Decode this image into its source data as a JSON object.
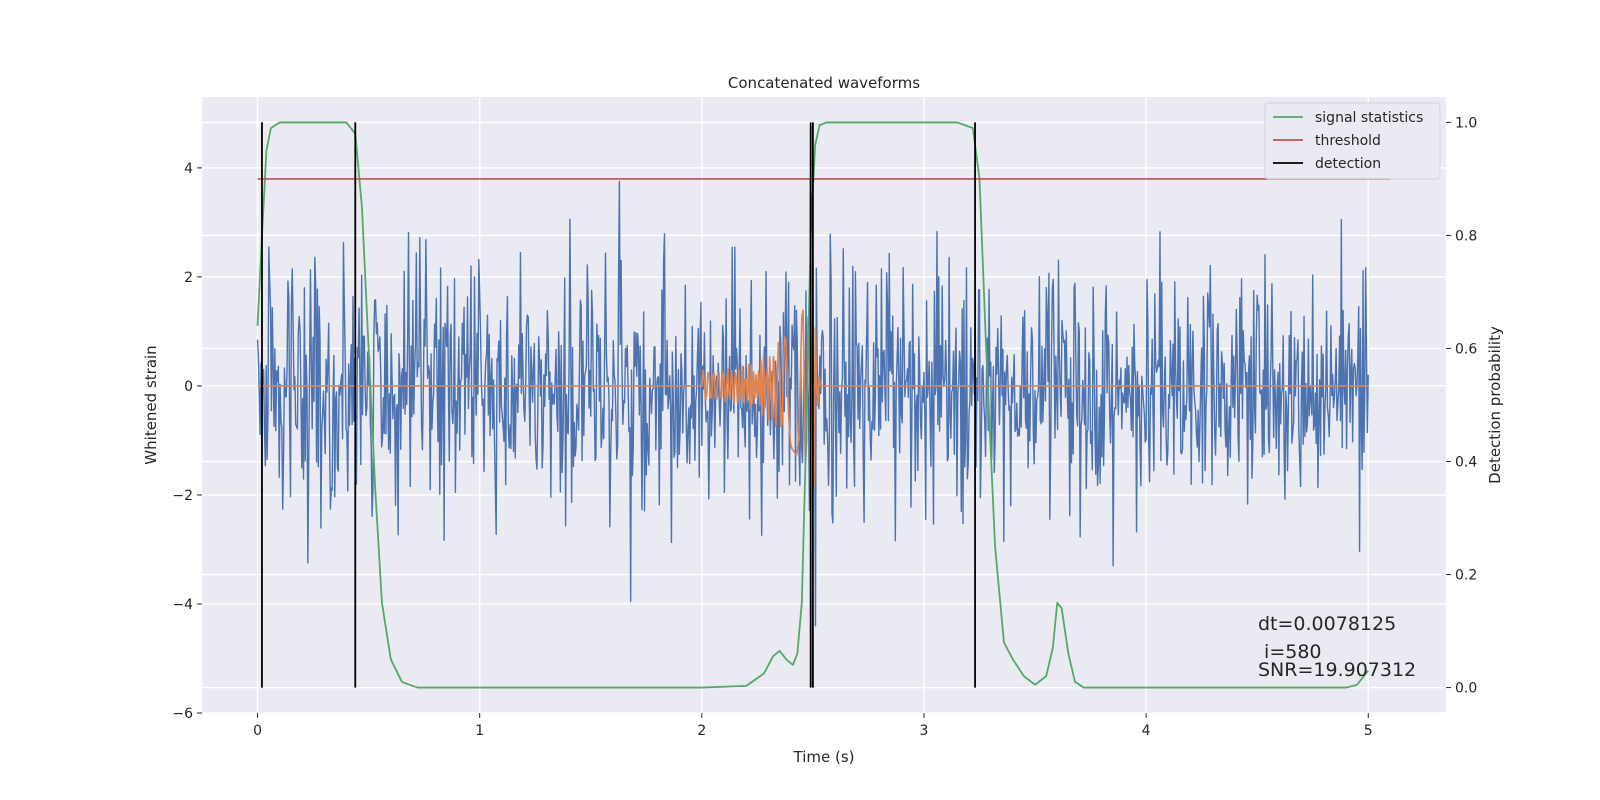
{
  "chart_data": {
    "type": "line",
    "title": "Concatenated waveforms",
    "xlabel": "Time (s)",
    "ylabel": "Whitened strain",
    "ylabel_right": "Detection probability",
    "xlim": [
      -0.25,
      5.35
    ],
    "ylim": [
      -6.0,
      5.3
    ],
    "ylim_right": [
      -0.045,
      1.045
    ],
    "x_ticks": [
      0,
      1,
      2,
      3,
      4,
      5
    ],
    "x_tick_labels": [
      "0",
      "1",
      "2",
      "3",
      "4",
      "5"
    ],
    "y_ticks": [
      -6,
      -4,
      -2,
      0,
      2,
      4
    ],
    "y_tick_labels": [
      "−6",
      "−4",
      "−2",
      "0",
      "2",
      "4"
    ],
    "y_right_ticks": [
      0.0,
      0.2,
      0.4,
      0.6,
      0.8,
      1.0
    ],
    "y_right_tick_labels": [
      "0.0",
      "0.2",
      "0.4",
      "0.6",
      "0.8",
      "1.0"
    ],
    "grid": true,
    "legend_position": "top-right",
    "legend": [
      {
        "label": "signal statistics",
        "color": "#55a868"
      },
      {
        "label": "threshold",
        "color": "#c44e52"
      },
      {
        "label": "detection",
        "color": "#000000"
      }
    ],
    "annotations": [
      "dt=0.0078125",
      " i=580",
      "SNR=19.907312"
    ],
    "colors": {
      "strain": "#4c72b0",
      "template": "#dd8452",
      "signal_statistics": "#55a868",
      "threshold": "#c44e52",
      "detection": "#000000",
      "axes_bg": "#eaeaf2",
      "grid": "#ffffff"
    },
    "strain": {
      "axis": "left",
      "x_range": [
        0,
        5
      ],
      "amplitude_typical": 1.2,
      "spikes": [
        {
          "x": 1.63,
          "y": 3.75
        },
        {
          "x": 1.68,
          "y": -3.95
        },
        {
          "x": 2.49,
          "y": 4.6
        },
        {
          "x": 2.51,
          "y": -4.4
        },
        {
          "x": 4.88,
          "y": 3.05
        },
        {
          "x": 0.05,
          "y": 2.55
        },
        {
          "x": 3.85,
          "y": -3.3
        }
      ]
    },
    "template_waveform": {
      "axis": "left",
      "flat_ranges": [
        [
          0,
          2.0
        ],
        [
          2.53,
          5.0
        ]
      ],
      "chirp_range": [
        2.0,
        2.53
      ],
      "peak_amplitude": 2.2
    },
    "signal_statistics": {
      "axis": "right",
      "x": [
        0.0,
        0.02,
        0.04,
        0.06,
        0.1,
        0.2,
        0.4,
        0.44,
        0.47,
        0.5,
        0.53,
        0.56,
        0.6,
        0.65,
        0.72,
        1.0,
        2.0,
        2.2,
        2.28,
        2.32,
        2.35,
        2.38,
        2.41,
        2.43,
        2.45,
        2.47,
        2.49,
        2.51,
        2.53,
        2.56,
        3.15,
        3.22,
        3.25,
        3.28,
        3.32,
        3.36,
        3.4,
        3.45,
        3.5,
        3.55,
        3.58,
        3.6,
        3.62,
        3.65,
        3.68,
        3.72,
        4.0,
        4.9,
        4.95,
        5.0
      ],
      "y": [
        0.64,
        0.8,
        0.95,
        0.99,
        1.0,
        1.0,
        1.0,
        0.98,
        0.85,
        0.6,
        0.35,
        0.15,
        0.05,
        0.01,
        0.0,
        0.0,
        0.0,
        0.003,
        0.025,
        0.055,
        0.065,
        0.05,
        0.04,
        0.06,
        0.15,
        0.45,
        0.8,
        0.96,
        0.995,
        1.0,
        1.0,
        0.99,
        0.9,
        0.6,
        0.25,
        0.08,
        0.05,
        0.02,
        0.005,
        0.02,
        0.07,
        0.15,
        0.14,
        0.06,
        0.01,
        0.0,
        0.0,
        0.0,
        0.005,
        0.03
      ]
    },
    "threshold": {
      "axis": "right",
      "y": 0.9,
      "x_range": [
        0,
        5.1
      ]
    },
    "detections": {
      "axis": "right",
      "x": [
        0.02,
        0.44,
        2.49,
        2.5,
        3.23
      ],
      "y_range": [
        0.0,
        1.0
      ]
    }
  }
}
